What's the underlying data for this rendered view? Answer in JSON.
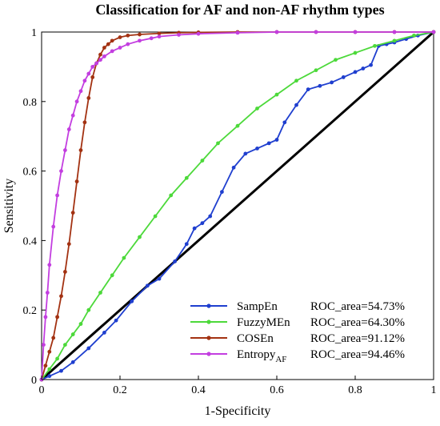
{
  "chart_data": {
    "type": "line",
    "title": "Classification for AF and non-AF rhythm types",
    "xlabel": "1-Specificity",
    "ylabel": "Sensitivity",
    "xlim": [
      0,
      1
    ],
    "ylim": [
      0,
      1
    ],
    "xticks": [
      "0",
      "0.2",
      "0.4",
      "0.6",
      "0.8",
      "1"
    ],
    "yticks": [
      "0",
      "0.2",
      "0.4",
      "0.6",
      "0.8",
      "1"
    ],
    "grid": false,
    "legend_position": "bottom-right",
    "reference_line": {
      "x": [
        0,
        1
      ],
      "y": [
        0,
        1
      ],
      "color": "#000000"
    },
    "series": [
      {
        "name": "SampEn",
        "legend_sub": "",
        "auc_label": "ROC_area=54.73%",
        "color": "#1f3fcf",
        "x": [
          0,
          0.02,
          0.05,
          0.08,
          0.12,
          0.16,
          0.19,
          0.23,
          0.27,
          0.3,
          0.34,
          0.37,
          0.39,
          0.41,
          0.43,
          0.46,
          0.49,
          0.52,
          0.55,
          0.58,
          0.6,
          0.62,
          0.65,
          0.68,
          0.71,
          0.74,
          0.77,
          0.8,
          0.82,
          0.84,
          0.86,
          0.88,
          0.9,
          0.93,
          0.96,
          1.0
        ],
        "y": [
          0,
          0.01,
          0.025,
          0.05,
          0.09,
          0.135,
          0.17,
          0.225,
          0.27,
          0.29,
          0.34,
          0.39,
          0.435,
          0.45,
          0.47,
          0.54,
          0.61,
          0.65,
          0.665,
          0.68,
          0.69,
          0.74,
          0.79,
          0.835,
          0.845,
          0.855,
          0.87,
          0.885,
          0.895,
          0.905,
          0.96,
          0.965,
          0.97,
          0.98,
          0.99,
          1.0
        ]
      },
      {
        "name": "FuzzyMEn",
        "legend_sub": "",
        "auc_label": "ROC_area=64.30%",
        "color": "#4cd93a",
        "x": [
          0,
          0.02,
          0.04,
          0.06,
          0.08,
          0.1,
          0.12,
          0.15,
          0.18,
          0.21,
          0.25,
          0.29,
          0.33,
          0.37,
          0.41,
          0.45,
          0.5,
          0.55,
          0.6,
          0.65,
          0.7,
          0.75,
          0.8,
          0.85,
          0.9,
          0.95,
          1.0
        ],
        "y": [
          0,
          0.03,
          0.06,
          0.1,
          0.13,
          0.16,
          0.2,
          0.25,
          0.3,
          0.35,
          0.41,
          0.47,
          0.53,
          0.58,
          0.63,
          0.68,
          0.73,
          0.78,
          0.82,
          0.86,
          0.89,
          0.92,
          0.94,
          0.96,
          0.975,
          0.99,
          1.0
        ]
      },
      {
        "name": "COSEn",
        "legend_sub": "",
        "auc_label": "ROC_area=91.12%",
        "color": "#a33212",
        "x": [
          0,
          0.01,
          0.02,
          0.03,
          0.04,
          0.05,
          0.06,
          0.07,
          0.08,
          0.09,
          0.1,
          0.11,
          0.12,
          0.13,
          0.14,
          0.15,
          0.16,
          0.17,
          0.18,
          0.2,
          0.22,
          0.25,
          0.3,
          0.35,
          0.4,
          0.5,
          0.6,
          0.7,
          0.8,
          0.9,
          1.0
        ],
        "y": [
          0,
          0.04,
          0.08,
          0.12,
          0.18,
          0.24,
          0.31,
          0.39,
          0.48,
          0.57,
          0.66,
          0.74,
          0.81,
          0.87,
          0.91,
          0.935,
          0.955,
          0.965,
          0.975,
          0.985,
          0.99,
          0.993,
          0.996,
          0.998,
          0.999,
          1.0,
          1.0,
          1.0,
          1.0,
          1.0,
          1.0
        ]
      },
      {
        "name": "Entropy",
        "legend_sub": "AF",
        "auc_label": "ROC_area=94.46%",
        "color": "#c33ee0",
        "x": [
          0,
          0.005,
          0.01,
          0.015,
          0.02,
          0.03,
          0.04,
          0.05,
          0.06,
          0.07,
          0.08,
          0.09,
          0.1,
          0.11,
          0.12,
          0.13,
          0.14,
          0.15,
          0.16,
          0.18,
          0.2,
          0.22,
          0.25,
          0.28,
          0.3,
          0.35,
          0.4,
          0.5,
          0.6,
          0.7,
          0.8,
          0.9,
          1.0
        ],
        "y": [
          0,
          0.1,
          0.18,
          0.25,
          0.33,
          0.44,
          0.53,
          0.6,
          0.66,
          0.72,
          0.76,
          0.8,
          0.83,
          0.86,
          0.88,
          0.9,
          0.91,
          0.92,
          0.93,
          0.945,
          0.955,
          0.965,
          0.975,
          0.982,
          0.987,
          0.992,
          0.995,
          0.998,
          1.0,
          1.0,
          1.0,
          1.0,
          1.0
        ]
      }
    ]
  }
}
